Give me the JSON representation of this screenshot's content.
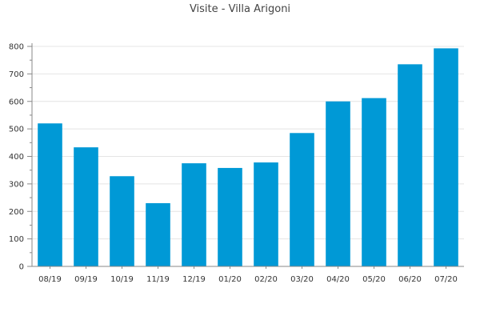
{
  "chart_data": {
    "type": "bar",
    "title": "Visite - Villa Arigoni",
    "xlabel": "",
    "ylabel": "",
    "categories": [
      "08/19",
      "09/19",
      "10/19",
      "11/19",
      "12/19",
      "01/20",
      "02/20",
      "03/20",
      "04/20",
      "05/20",
      "06/20",
      "07/20"
    ],
    "values": [
      520,
      433,
      328,
      230,
      375,
      358,
      378,
      485,
      600,
      612,
      735,
      793
    ],
    "ylim": [
      0,
      800
    ],
    "yticks": [
      "0",
      "100",
      "200",
      "300",
      "400",
      "500",
      "600",
      "700",
      "800"
    ],
    "grid": true,
    "legend": "none",
    "bar_color": "#0099d6"
  }
}
